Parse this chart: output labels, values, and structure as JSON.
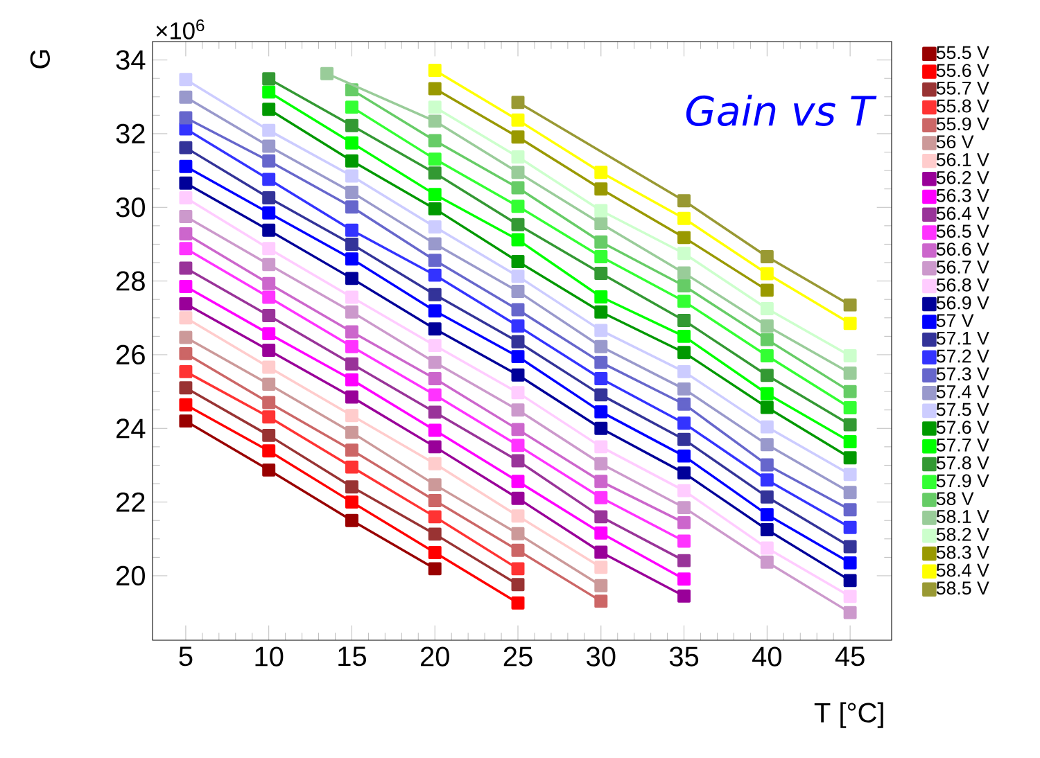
{
  "chart_data": {
    "type": "line",
    "title": "Gain vs T",
    "xlabel": "T [°C]",
    "ylabel": "G",
    "annotations": [
      "×10$^{6}$"
    ],
    "xlim": [
      3,
      47.5
    ],
    "ylim": [
      18.25,
      34.5
    ],
    "xticks": [
      5,
      10,
      15,
      20,
      25,
      30,
      35,
      40,
      45
    ],
    "yticks": [
      20,
      22,
      24,
      26,
      28,
      30,
      32,
      34
    ],
    "marker": "square",
    "line_style": "solid",
    "grid": false,
    "legend": "right",
    "series": [
      {
        "name": "55.5 V",
        "color": "#990000",
        "x": [
          5,
          10,
          15,
          20
        ],
        "values": [
          24.2,
          22.87,
          21.5,
          20.19
        ]
      },
      {
        "name": "55.6 V",
        "color": "#ff0000",
        "x": [
          5,
          10,
          15,
          20,
          25
        ],
        "values": [
          24.64,
          23.39,
          22.0,
          20.63,
          19.26
        ]
      },
      {
        "name": "55.7 V",
        "color": "#993333",
        "x": [
          5,
          10,
          15,
          20,
          25
        ],
        "values": [
          25.1,
          23.81,
          22.41,
          21.13,
          19.76
        ]
      },
      {
        "name": "55.8 V",
        "color": "#ff3333",
        "x": [
          5,
          10,
          15,
          20,
          25
        ],
        "values": [
          25.54,
          24.31,
          22.95,
          21.6,
          20.19
        ]
      },
      {
        "name": "55.9 V",
        "color": "#cc6666",
        "x": [
          5,
          10,
          15,
          20,
          25,
          30
        ],
        "values": [
          26.03,
          24.7,
          23.41,
          22.04,
          20.69,
          19.31
        ]
      },
      {
        "name": "56 V",
        "color": "#cc9999",
        "x": [
          5,
          10,
          15,
          20,
          25,
          30
        ],
        "values": [
          26.47,
          25.2,
          23.89,
          22.47,
          21.14,
          19.73
        ]
      },
      {
        "name": "56.1 V",
        "color": "#ffcccc",
        "x": [
          5,
          10,
          15,
          20,
          25,
          30
        ],
        "values": [
          27.0,
          25.66,
          24.35,
          23.04,
          21.62,
          20.23
        ]
      },
      {
        "name": "56.2 V",
        "color": "#990099",
        "x": [
          5,
          10,
          15,
          20,
          25,
          30,
          35
        ],
        "values": [
          27.38,
          26.12,
          24.85,
          23.5,
          22.1,
          20.64,
          19.45
        ]
      },
      {
        "name": "56.3 V",
        "color": "#ff00ff",
        "x": [
          5,
          10,
          15,
          20,
          25,
          30,
          35
        ],
        "values": [
          27.85,
          26.57,
          25.32,
          23.95,
          22.56,
          21.16,
          19.91
        ]
      },
      {
        "name": "56.4 V",
        "color": "#993399",
        "x": [
          5,
          10,
          15,
          20,
          25,
          30,
          35
        ],
        "values": [
          28.35,
          27.06,
          25.75,
          24.44,
          23.12,
          21.6,
          20.41
        ]
      },
      {
        "name": "56.5 V",
        "color": "#ff33ff",
        "x": [
          5,
          10,
          15,
          20,
          25,
          30,
          35
        ],
        "values": [
          28.88,
          27.56,
          26.22,
          24.91,
          23.54,
          22.12,
          20.94
        ]
      },
      {
        "name": "56.6 V",
        "color": "#cc66cc",
        "x": [
          5,
          10,
          15,
          20,
          25,
          30,
          35
        ],
        "values": [
          29.28,
          27.93,
          26.62,
          25.35,
          23.97,
          22.56,
          21.44
        ]
      },
      {
        "name": "56.7 V",
        "color": "#cc99cc",
        "x": [
          5,
          10,
          15,
          20,
          25,
          30,
          35,
          40,
          45
        ],
        "values": [
          29.75,
          28.45,
          27.16,
          25.79,
          24.5,
          23.04,
          21.85,
          20.37,
          19.0
        ]
      },
      {
        "name": "56.8 V",
        "color": "#ffccff",
        "x": [
          5,
          10,
          15,
          20,
          25,
          30,
          35,
          40,
          45
        ],
        "values": [
          30.26,
          28.88,
          27.56,
          26.25,
          24.97,
          23.5,
          22.31,
          20.75,
          19.44
        ]
      },
      {
        "name": "56.9 V",
        "color": "#000099",
        "x": [
          5,
          10,
          15,
          20,
          25,
          30,
          35,
          40,
          45
        ],
        "values": [
          30.66,
          29.38,
          28.07,
          26.7,
          25.45,
          24.0,
          22.79,
          21.25,
          19.87
        ]
      },
      {
        "name": "57 V",
        "color": "#0000ff",
        "x": [
          5,
          10,
          15,
          20,
          25,
          30,
          35,
          40,
          45
        ],
        "values": [
          31.11,
          29.85,
          28.6,
          27.19,
          25.95,
          24.45,
          23.25,
          21.66,
          20.35
        ]
      },
      {
        "name": "57.1 V",
        "color": "#333399",
        "x": [
          5,
          10,
          15,
          20,
          25,
          30,
          35,
          40,
          45
        ],
        "values": [
          31.62,
          30.26,
          29.0,
          27.63,
          26.35,
          24.91,
          23.7,
          22.14,
          20.79
        ]
      },
      {
        "name": "57.2 V",
        "color": "#3333ff",
        "x": [
          5,
          10,
          15,
          20,
          25,
          30,
          35,
          40,
          45
        ],
        "values": [
          32.13,
          30.76,
          29.38,
          28.16,
          26.78,
          25.35,
          24.14,
          22.6,
          21.31
        ]
      },
      {
        "name": "57.3 V",
        "color": "#6666cc",
        "x": [
          5,
          10,
          15,
          20,
          25,
          30,
          35,
          40,
          45
        ],
        "values": [
          32.43,
          31.26,
          30.01,
          28.56,
          27.22,
          25.79,
          24.66,
          23.01,
          21.79
        ]
      },
      {
        "name": "57.4 V",
        "color": "#9999cc",
        "x": [
          5,
          10,
          15,
          20,
          25,
          30,
          35,
          40,
          45
        ],
        "values": [
          32.99,
          31.66,
          30.41,
          29.01,
          27.72,
          26.22,
          25.07,
          23.56,
          22.26
        ]
      },
      {
        "name": "57.5 V",
        "color": "#ccccff",
        "x": [
          5,
          10,
          15,
          20,
          25,
          30,
          35,
          40,
          45
        ],
        "values": [
          33.47,
          32.09,
          30.85,
          29.47,
          28.13,
          26.66,
          25.54,
          24.04,
          22.75
        ]
      },
      {
        "name": "57.6 V",
        "color": "#009900",
        "x": [
          10,
          15,
          20,
          25,
          30,
          35,
          40,
          45
        ],
        "values": [
          32.66,
          31.26,
          29.96,
          28.53,
          27.16,
          26.06,
          24.57,
          23.2
        ]
      },
      {
        "name": "57.7 V",
        "color": "#00ff00",
        "x": [
          10,
          15,
          20,
          25,
          30,
          35,
          40,
          45
        ],
        "values": [
          33.13,
          31.75,
          30.35,
          29.12,
          27.57,
          26.5,
          24.94,
          23.64
        ]
      },
      {
        "name": "57.8 V",
        "color": "#339933",
        "x": [
          10,
          15,
          20,
          25,
          30,
          35,
          40,
          45
        ],
        "values": [
          33.49,
          32.22,
          30.93,
          29.53,
          28.21,
          26.93,
          25.44,
          24.1
        ]
      },
      {
        "name": "57.9 V",
        "color": "#33ff33",
        "x": [
          15,
          20,
          25,
          30,
          35,
          40,
          45
        ],
        "values": [
          32.72,
          31.31,
          30.03,
          28.66,
          27.45,
          25.97,
          24.56
        ]
      },
      {
        "name": "58 V",
        "color": "#66cc66",
        "x": [
          15,
          20,
          25,
          30,
          35,
          40,
          45
        ],
        "values": [
          33.19,
          31.81,
          30.53,
          29.06,
          27.87,
          26.41,
          25.0
        ]
      },
      {
        "name": "58.1 V",
        "color": "#99cc99",
        "x": [
          13.5,
          20,
          25,
          30,
          35,
          40,
          45
        ],
        "values": [
          33.63,
          32.34,
          30.95,
          29.56,
          28.22,
          26.78,
          25.5
        ]
      },
      {
        "name": "58.2 V",
        "color": "#ccffcc",
        "x": [
          20,
          25,
          30,
          35,
          40,
          45
        ],
        "values": [
          32.72,
          31.37,
          29.91,
          28.75,
          27.25,
          25.97
        ]
      },
      {
        "name": "58.3 V",
        "color": "#999900",
        "x": [
          20,
          25,
          30,
          35,
          40
        ],
        "values": [
          33.22,
          31.91,
          30.5,
          29.18,
          27.75
        ]
      },
      {
        "name": "58.4 V",
        "color": "#ffff00",
        "x": [
          20,
          25,
          30,
          35,
          40,
          45
        ],
        "values": [
          33.72,
          32.37,
          30.95,
          29.7,
          28.2,
          26.85
        ]
      },
      {
        "name": "58.5 V",
        "color": "#999933",
        "x": [
          25,
          35,
          40,
          45
        ],
        "values": [
          32.85,
          30.18,
          28.66,
          27.35
        ]
      }
    ]
  }
}
